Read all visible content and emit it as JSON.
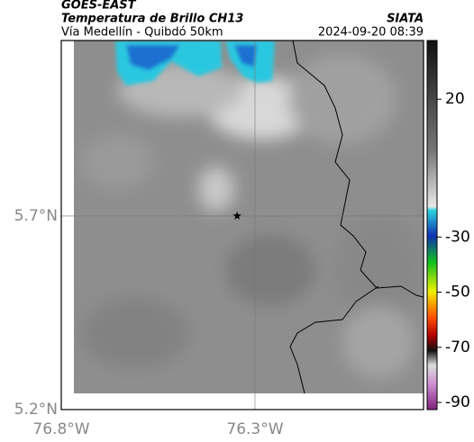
{
  "header": {
    "title": "GOES-EAST",
    "subtitle": "Temperatura de Brillo CH13",
    "source": "SIATA",
    "location": "Vía Medellín - Quibdó 50km",
    "timestamp": "2024-09-20 08:39"
  },
  "map": {
    "xlim": [
      -76.8,
      -75.865
    ],
    "ylim": [
      5.2,
      6.153
    ],
    "xticks": [
      {
        "value": -76.8,
        "label": "76.8°W"
      },
      {
        "value": -76.3,
        "label": "76.3°W"
      }
    ],
    "yticks": [
      {
        "value": 5.7,
        "label": "5.7°N"
      },
      {
        "value": 5.2,
        "label": "5.2°N"
      }
    ],
    "marker": {
      "lon": -76.346,
      "lat": 5.7
    }
  },
  "colorbar": {
    "clim": [
      -92.6,
      41.3
    ],
    "ticks": [
      20,
      -30,
      -50,
      -70,
      -90
    ]
  }
}
